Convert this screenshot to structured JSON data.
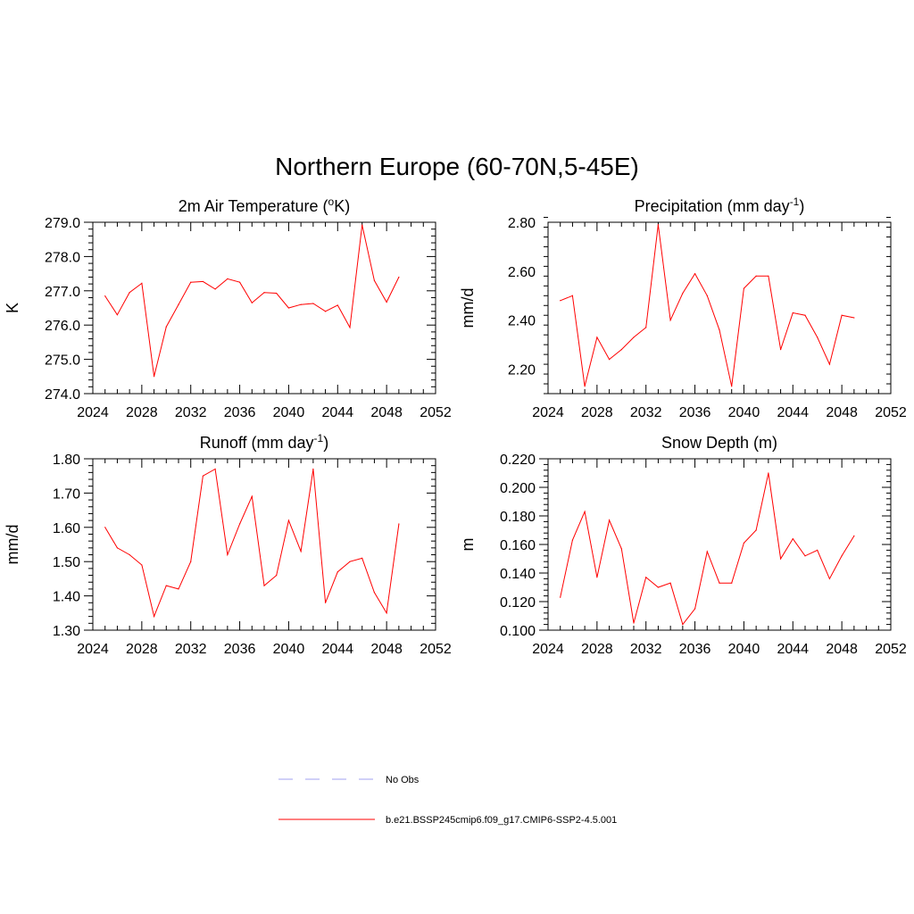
{
  "figure": {
    "title": "Northern Europe (60-70N,5-45E)"
  },
  "legend": {
    "entries": [
      {
        "label": "No Obs",
        "color": "#a0a0f0",
        "style": "dashed"
      },
      {
        "label": "b.e21.BSSP245cmip6.f09_g17.CMIP6-SSP2-4.5.001",
        "color": "#ff0000",
        "style": "solid"
      }
    ]
  },
  "chart_data": [
    {
      "type": "line",
      "title": "2m Air Temperature (",
      "title_sup": "o",
      "title_tail": "K)",
      "ylabel": "K",
      "xlim": [
        2024,
        2052
      ],
      "ylim": [
        274.0,
        279.0
      ],
      "yticks": [
        "274.0",
        "275.0",
        "276.0",
        "277.0",
        "278.0",
        "279.0"
      ],
      "xticks": [
        "2024",
        "2028",
        "2032",
        "2036",
        "2040",
        "2044",
        "2048",
        "2052"
      ],
      "grid": false,
      "series": [
        {
          "name": "b.e21.BSSP245cmip6.f09_g17.CMIP6-SSP2-4.5.001",
          "color": "#ff0000",
          "x": [
            2025,
            2026,
            2027,
            2028,
            2029,
            2030,
            2031,
            2032,
            2033,
            2034,
            2035,
            2036,
            2037,
            2038,
            2039,
            2040,
            2041,
            2042,
            2043,
            2044,
            2045,
            2046,
            2047,
            2048,
            2049
          ],
          "y": [
            276.85,
            276.3,
            276.95,
            277.22,
            274.5,
            275.95,
            276.6,
            277.25,
            277.27,
            277.05,
            277.35,
            277.25,
            276.65,
            276.95,
            276.93,
            276.5,
            276.6,
            276.63,
            276.4,
            276.58,
            275.93,
            278.92,
            277.3,
            276.67,
            277.4
          ]
        }
      ]
    },
    {
      "type": "line",
      "title": "Precipitation (mm day",
      "title_sup": "-1",
      "title_tail": ")",
      "ylabel": "mm/d",
      "xlim": [
        2024,
        2052
      ],
      "ylim": [
        2.1,
        2.8
      ],
      "yticks": [
        "2.20",
        "2.40",
        "2.60",
        "2.80"
      ],
      "xticks": [
        "2024",
        "2028",
        "2032",
        "2036",
        "2040",
        "2044",
        "2048",
        "2052"
      ],
      "grid": false,
      "series": [
        {
          "name": "b.e21.BSSP245cmip6.f09_g17.CMIP6-SSP2-4.5.001",
          "color": "#ff0000",
          "x": [
            2025,
            2026,
            2027,
            2028,
            2029,
            2030,
            2031,
            2032,
            2033,
            2034,
            2035,
            2036,
            2037,
            2038,
            2039,
            2040,
            2041,
            2042,
            2043,
            2044,
            2045,
            2046,
            2047,
            2048,
            2049
          ],
          "y": [
            2.48,
            2.5,
            2.13,
            2.33,
            2.24,
            2.28,
            2.33,
            2.37,
            2.79,
            2.4,
            2.51,
            2.59,
            2.5,
            2.36,
            2.13,
            2.53,
            2.58,
            2.58,
            2.28,
            2.43,
            2.42,
            2.33,
            2.22,
            2.42,
            2.41
          ]
        }
      ]
    },
    {
      "type": "line",
      "title": "Runoff (mm day",
      "title_sup": "-1",
      "title_tail": ")",
      "ylabel": "mm/d",
      "xlim": [
        2024,
        2052
      ],
      "ylim": [
        1.3,
        1.8
      ],
      "yticks": [
        "1.30",
        "1.40",
        "1.50",
        "1.60",
        "1.70",
        "1.80"
      ],
      "xticks": [
        "2024",
        "2028",
        "2032",
        "2036",
        "2040",
        "2044",
        "2048",
        "2052"
      ],
      "grid": false,
      "series": [
        {
          "name": "b.e21.BSSP245cmip6.f09_g17.CMIP6-SSP2-4.5.001",
          "color": "#ff0000",
          "x": [
            2025,
            2026,
            2027,
            2028,
            2029,
            2030,
            2031,
            2032,
            2033,
            2034,
            2035,
            2036,
            2037,
            2038,
            2039,
            2040,
            2041,
            2042,
            2043,
            2044,
            2045,
            2046,
            2047,
            2048,
            2049
          ],
          "y": [
            1.6,
            1.54,
            1.52,
            1.49,
            1.34,
            1.43,
            1.42,
            1.5,
            1.75,
            1.77,
            1.52,
            1.61,
            1.69,
            1.43,
            1.46,
            1.62,
            1.53,
            1.77,
            1.38,
            1.47,
            1.5,
            1.51,
            1.41,
            1.35,
            1.61
          ]
        }
      ]
    },
    {
      "type": "line",
      "title": "Snow Depth (m)",
      "title_sup": "",
      "title_tail": "",
      "ylabel": "m",
      "xlim": [
        2024,
        2052
      ],
      "ylim": [
        0.1,
        0.22
      ],
      "yticks": [
        "0.100",
        "0.120",
        "0.140",
        "0.160",
        "0.180",
        "0.200",
        "0.220"
      ],
      "xticks": [
        "2024",
        "2028",
        "2032",
        "2036",
        "2040",
        "2044",
        "2048",
        "2052"
      ],
      "grid": false,
      "series": [
        {
          "name": "b.e21.BSSP245cmip6.f09_g17.CMIP6-SSP2-4.5.001",
          "color": "#ff0000",
          "x": [
            2025,
            2026,
            2027,
            2028,
            2029,
            2030,
            2031,
            2032,
            2033,
            2034,
            2035,
            2036,
            2037,
            2038,
            2039,
            2040,
            2041,
            2042,
            2043,
            2044,
            2045,
            2046,
            2047,
            2048,
            2049
          ],
          "y": [
            0.123,
            0.163,
            0.183,
            0.137,
            0.177,
            0.157,
            0.105,
            0.137,
            0.13,
            0.133,
            0.104,
            0.115,
            0.155,
            0.133,
            0.133,
            0.161,
            0.17,
            0.21,
            0.15,
            0.164,
            0.152,
            0.156,
            0.136,
            0.152,
            0.166
          ]
        }
      ]
    }
  ]
}
